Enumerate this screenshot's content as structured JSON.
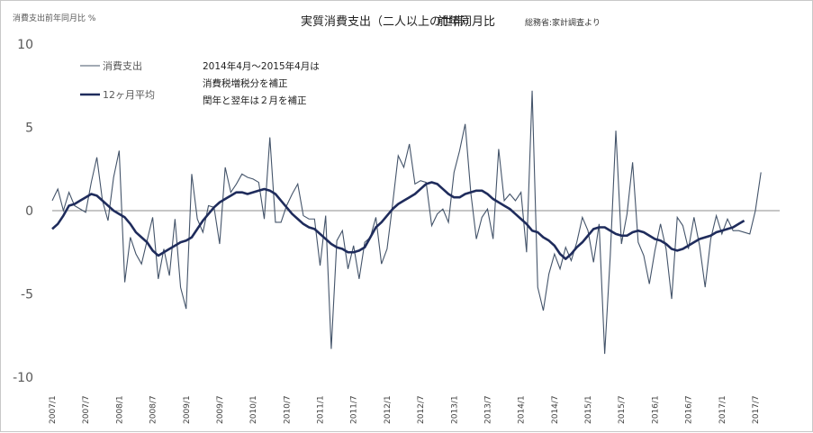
{
  "chart_data": {
    "type": "line",
    "title": "実質消費支出（二人以上の世帯）",
    "subtitle": "前年同月比",
    "source": "総務省:家計調査より",
    "ylabel": "消費支出前年同月比 %",
    "ylim": [
      -10,
      10
    ],
    "yticks": [
      "10",
      "5",
      "0",
      "-5",
      "-10"
    ],
    "xticks": [
      "2007/1",
      "2007/7",
      "2008/1",
      "2008/7",
      "2009/1",
      "2009/7",
      "2010/1",
      "2010/7",
      "2011/1",
      "2011/7",
      "2012/1",
      "2012/7",
      "2013/1",
      "2013/7",
      "2014/1",
      "2014/7",
      "2015/1",
      "2015/7",
      "2016/1",
      "2016/7",
      "2017/1",
      "2017/7"
    ],
    "x_start": "2007/1",
    "x_end": "2017/7",
    "grid": "zero-line only",
    "legend_position": "top-left",
    "notes": [
      "2014年4月～2015年4月は",
      "消費税増税分を補正",
      "閏年と翌年は２月を補正"
    ],
    "series": [
      {
        "name": "消費支出",
        "color": "#44546a",
        "values": [
          0.6,
          1.3,
          0.0,
          1.1,
          0.3,
          0.1,
          -0.1,
          1.7,
          3.2,
          0.6,
          -0.6,
          2.0,
          3.6,
          -4.3,
          -1.6,
          -2.6,
          -3.2,
          -1.8,
          -0.4,
          -4.1,
          -2.3,
          -3.9,
          -0.5,
          -4.6,
          -5.9,
          2.2,
          -0.5,
          -1.3,
          0.3,
          0.2,
          -2.0,
          2.6,
          1.1,
          1.6,
          2.2,
          2.0,
          1.9,
          1.7,
          -0.5,
          4.4,
          -0.7,
          -0.7,
          0.3,
          1.0,
          1.6,
          -0.3,
          -0.5,
          -0.5,
          -3.3,
          -0.3,
          -8.3,
          -1.8,
          -1.2,
          -3.5,
          -2.1,
          -4.1,
          -1.9,
          -1.6,
          -0.4,
          -3.2,
          -2.3,
          0.4,
          3.3,
          2.6,
          4.0,
          1.6,
          1.8,
          1.7,
          -0.9,
          -0.2,
          0.1,
          -0.7,
          2.3,
          3.6,
          5.2,
          1.1,
          -1.7,
          -0.4,
          0.1,
          -1.7,
          3.7,
          0.6,
          1.0,
          0.6,
          1.1,
          -2.5,
          7.2,
          -4.6,
          -6.0,
          -3.8,
          -2.6,
          -3.5,
          -2.2,
          -3.0,
          -1.9,
          -0.4,
          -1.2,
          -3.1,
          -0.8,
          -8.6,
          -2.7,
          4.8,
          -2.0,
          -0.2,
          2.9,
          -1.9,
          -2.7,
          -4.4,
          -2.4,
          -0.8,
          -2.3,
          -5.3,
          -0.4,
          -0.9,
          -2.3,
          -0.4,
          -2.1,
          -4.6,
          -1.7,
          -0.3,
          -1.4,
          -0.5,
          -1.2,
          -1.2,
          -1.3,
          -1.4,
          0.0,
          2.3
        ]
      },
      {
        "name": "12ヶ月平均",
        "color": "#1f2c5c",
        "values": [
          -1.1,
          -0.8,
          -0.3,
          0.3,
          0.4,
          0.6,
          0.8,
          1.0,
          0.9,
          0.6,
          0.3,
          0.0,
          -0.2,
          -0.4,
          -0.8,
          -1.3,
          -1.6,
          -1.9,
          -2.4,
          -2.7,
          -2.5,
          -2.3,
          -2.1,
          -1.9,
          -1.8,
          -1.6,
          -1.1,
          -0.6,
          -0.2,
          0.2,
          0.5,
          0.7,
          0.9,
          1.1,
          1.1,
          1.0,
          1.1,
          1.2,
          1.3,
          1.2,
          1.0,
          0.6,
          0.2,
          -0.2,
          -0.5,
          -0.8,
          -1.0,
          -1.1,
          -1.4,
          -1.7,
          -2.0,
          -2.2,
          -2.3,
          -2.5,
          -2.5,
          -2.4,
          -2.2,
          -1.6,
          -1.0,
          -0.7,
          -0.3,
          0.1,
          0.4,
          0.6,
          0.8,
          1.0,
          1.3,
          1.6,
          1.7,
          1.6,
          1.3,
          1.0,
          0.8,
          0.8,
          1.0,
          1.1,
          1.2,
          1.2,
          1.0,
          0.7,
          0.5,
          0.3,
          0.1,
          -0.2,
          -0.5,
          -0.8,
          -1.2,
          -1.3,
          -1.6,
          -1.8,
          -2.1,
          -2.6,
          -2.9,
          -2.6,
          -2.2,
          -1.9,
          -1.5,
          -1.1,
          -1.0,
          -1.0,
          -1.2,
          -1.4,
          -1.5,
          -1.5,
          -1.3,
          -1.2,
          -1.3,
          -1.5,
          -1.7,
          -1.8,
          -2.0,
          -2.3,
          -2.4,
          -2.3,
          -2.1,
          -1.9,
          -1.7,
          -1.6,
          -1.5,
          -1.3,
          -1.2,
          -1.1,
          -1.0,
          -0.8,
          -0.6
        ]
      }
    ]
  }
}
